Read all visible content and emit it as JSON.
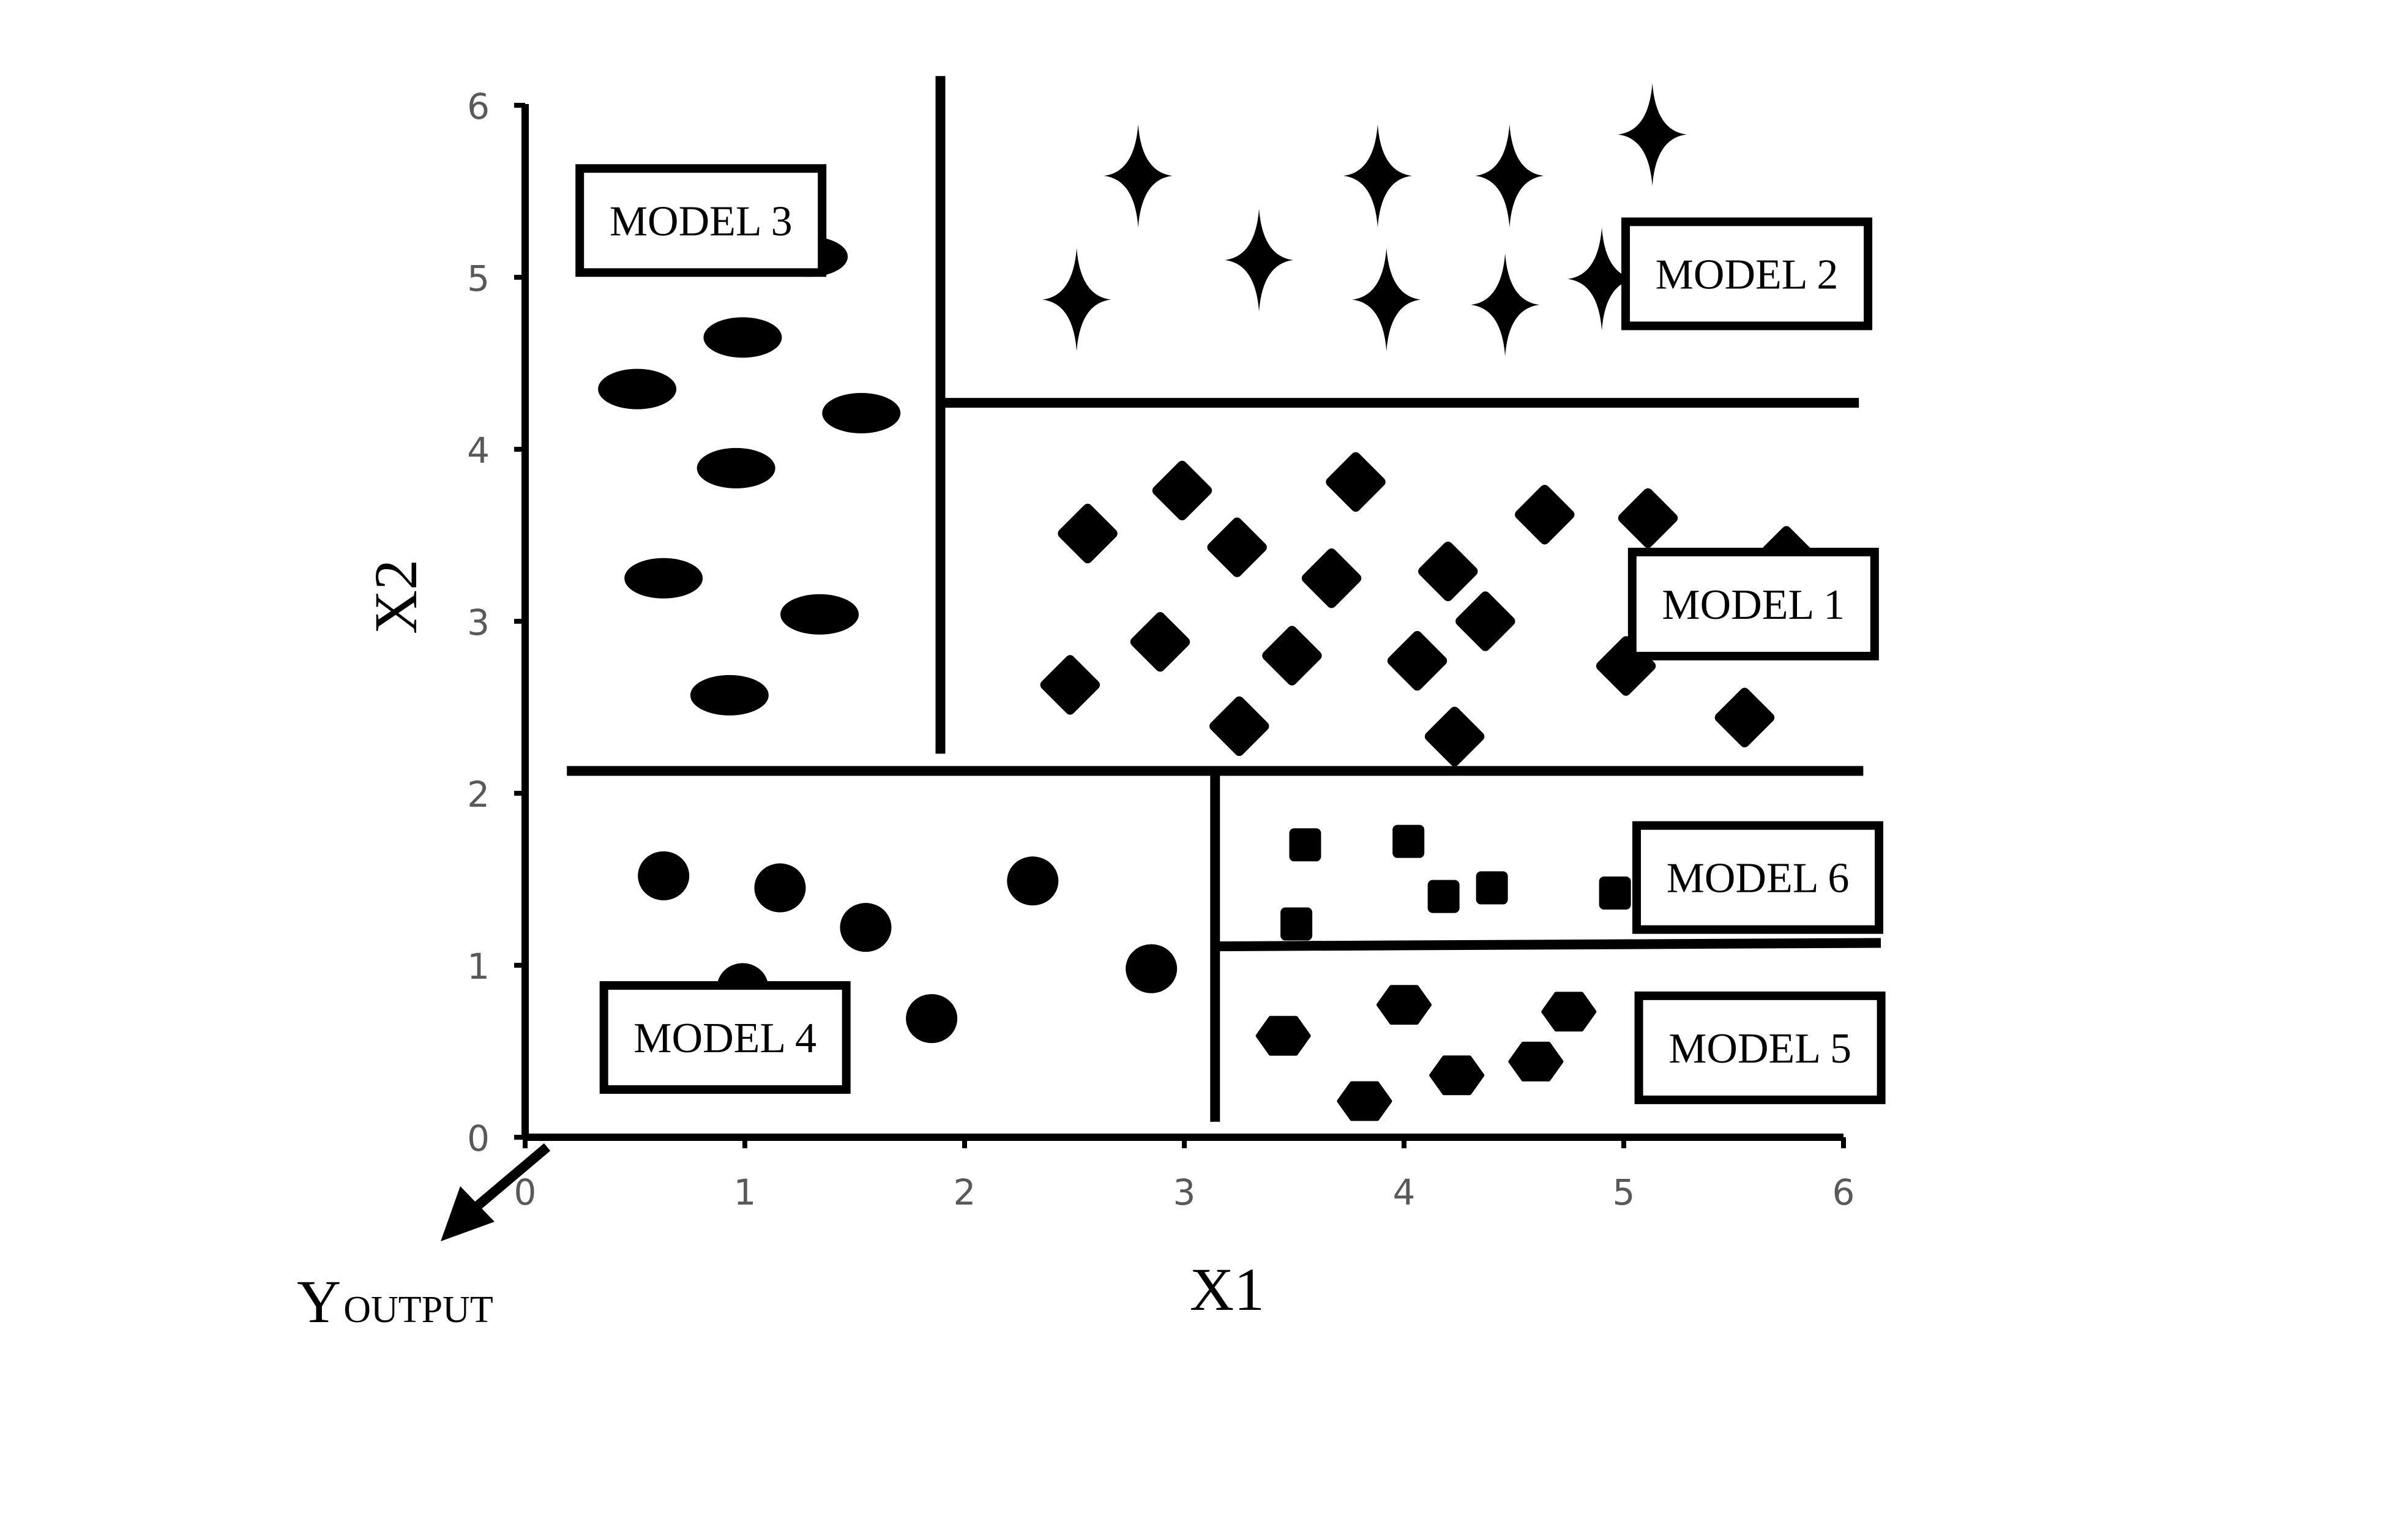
{
  "chart_data": {
    "type": "scatter",
    "x_axis": {
      "label": "X1",
      "range": [
        0,
        6
      ],
      "ticks": [
        0,
        1,
        2,
        3,
        4,
        5,
        6
      ]
    },
    "y_axis": {
      "label": "X2",
      "range": [
        0,
        6
      ],
      "ticks": [
        0,
        1,
        2,
        3,
        4,
        5,
        6
      ]
    },
    "output_axis": {
      "label_main": "Y",
      "label_sub": "OUTPUT"
    },
    "grid": false,
    "partition_lines": [
      {
        "from": [
          1.89,
          6.17
        ],
        "to": [
          1.89,
          2.23
        ]
      },
      {
        "from": [
          1.89,
          4.27
        ],
        "to": [
          6.07,
          4.27
        ]
      },
      {
        "from": [
          0.19,
          2.13
        ],
        "to": [
          6.09,
          2.13
        ]
      },
      {
        "from": [
          3.14,
          2.13
        ],
        "to": [
          3.14,
          0.09
        ]
      },
      {
        "from": [
          3.14,
          1.11
        ],
        "to": [
          6.17,
          1.13
        ]
      }
    ],
    "regions": [
      {
        "model": "MODEL 3",
        "shape": "ellipse",
        "label_at": [
          0.8,
          5.33
        ],
        "points": [
          [
            1.29,
            5.12
          ],
          [
            0.99,
            4.65
          ],
          [
            0.51,
            4.35
          ],
          [
            1.53,
            4.21
          ],
          [
            0.96,
            3.89
          ],
          [
            0.63,
            3.25
          ],
          [
            1.34,
            3.04
          ],
          [
            0.93,
            2.57
          ]
        ]
      },
      {
        "model": "MODEL 2",
        "shape": "star",
        "label_at": [
          5.56,
          5.02
        ],
        "points": [
          [
            2.79,
            5.59
          ],
          [
            3.88,
            5.59
          ],
          [
            4.48,
            5.59
          ],
          [
            5.13,
            5.83
          ],
          [
            3.34,
            5.1
          ],
          [
            2.51,
            4.87
          ],
          [
            3.92,
            4.87
          ],
          [
            4.46,
            4.84
          ],
          [
            4.9,
            4.99
          ]
        ]
      },
      {
        "model": "MODEL 1",
        "shape": "diamond",
        "label_at": [
          5.59,
          3.1
        ],
        "points": [
          [
            2.56,
            3.51
          ],
          [
            2.99,
            3.76
          ],
          [
            3.24,
            3.43
          ],
          [
            3.78,
            3.81
          ],
          [
            3.67,
            3.25
          ],
          [
            4.2,
            3.29
          ],
          [
            4.64,
            3.62
          ],
          [
            5.11,
            3.6
          ],
          [
            5.74,
            3.38
          ],
          [
            2.89,
            2.88
          ],
          [
            3.49,
            2.8
          ],
          [
            4.06,
            2.77
          ],
          [
            4.37,
            3.0
          ],
          [
            5.01,
            2.74
          ],
          [
            2.48,
            2.63
          ],
          [
            3.25,
            2.39
          ],
          [
            4.23,
            2.33
          ],
          [
            5.55,
            2.44
          ]
        ]
      },
      {
        "model": "MODEL 6",
        "shape": "square",
        "label_at": [
          5.61,
          1.51
        ],
        "points": [
          [
            3.55,
            1.7
          ],
          [
            4.02,
            1.72
          ],
          [
            3.51,
            1.24
          ],
          [
            4.18,
            1.4
          ],
          [
            4.4,
            1.45
          ],
          [
            4.96,
            1.42
          ]
        ]
      },
      {
        "model": "MODEL 4",
        "shape": "circle",
        "label_at": [
          0.91,
          0.58
        ],
        "points": [
          [
            0.63,
            1.52
          ],
          [
            1.16,
            1.45
          ],
          [
            1.55,
            1.22
          ],
          [
            2.31,
            1.49
          ],
          [
            2.85,
            0.98
          ],
          [
            0.99,
            0.87
          ],
          [
            1.85,
            0.69
          ]
        ]
      },
      {
        "model": "MODEL 5",
        "shape": "hexagon",
        "label_at": [
          5.62,
          0.52
        ],
        "points": [
          [
            3.45,
            0.59
          ],
          [
            4.0,
            0.77
          ],
          [
            4.75,
            0.73
          ],
          [
            4.6,
            0.44
          ],
          [
            4.24,
            0.36
          ],
          [
            3.82,
            0.21
          ]
        ]
      }
    ]
  }
}
